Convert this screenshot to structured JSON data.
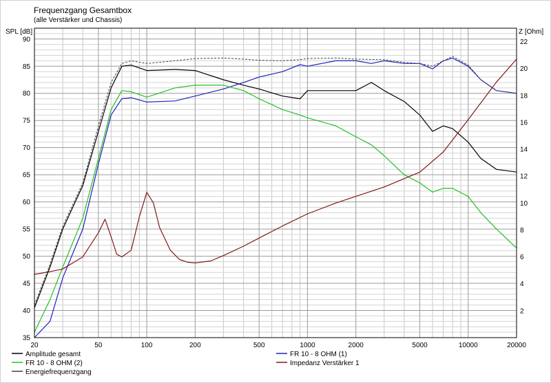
{
  "chart_data": {
    "type": "line",
    "title": "Frequenzgang Gesamtbox",
    "subtitle": "(alle Verstärker und Chassis)",
    "ylabel_left": "SPL [dB]",
    "ylabel_right": "Z [Ohm]",
    "x_scale": "log",
    "xlim": [
      20,
      20000
    ],
    "ylim_left": [
      35,
      92
    ],
    "ylim_right": [
      0,
      23
    ],
    "grid": true,
    "x_ticks": [
      "20",
      "50",
      "100",
      "200",
      "500",
      "1000",
      "2000",
      "5000",
      "10000",
      "20000"
    ],
    "y_ticks_left": [
      "35",
      "40",
      "45",
      "50",
      "55",
      "60",
      "65",
      "70",
      "75",
      "80",
      "85",
      "90"
    ],
    "y_ticks_right": [
      "2",
      "4",
      "6",
      "8",
      "10",
      "12",
      "14",
      "16",
      "18",
      "20",
      "22"
    ],
    "legend": [
      {
        "label": "Amplitude gesamt",
        "color": "#000000"
      },
      {
        "label": "FR 10 - 8 OHM (1)",
        "color": "#2020c0"
      },
      {
        "label": "FR 10 - 8 OHM (2)",
        "color": "#22c022"
      },
      {
        "label": "Impedanz Verstärker 1",
        "color": "#801818"
      },
      {
        "label": "Energiefrequenzgang",
        "color": "#404040"
      }
    ],
    "series": [
      {
        "name": "Amplitude gesamt",
        "axis": "left",
        "color": "#000000",
        "x": [
          20,
          25,
          30,
          40,
          50,
          60,
          70,
          80,
          100,
          150,
          200,
          300,
          400,
          500,
          700,
          900,
          1000,
          1500,
          2000,
          2500,
          3000,
          4000,
          5000,
          6000,
          7000,
          8000,
          10000,
          12000,
          15000,
          20000
        ],
        "y": [
          40.5,
          48,
          55,
          63,
          73,
          81,
          85,
          85.2,
          84.2,
          84.4,
          84.2,
          82.5,
          81.5,
          80.8,
          79.5,
          79,
          80.5,
          80.5,
          80.5,
          82,
          80.5,
          78.5,
          76,
          73,
          74,
          73.5,
          71,
          68,
          66,
          65.5
        ]
      },
      {
        "name": "FR 10 - 8 OHM (1)",
        "axis": "left",
        "color": "#2020c0",
        "x": [
          20,
          25,
          30,
          40,
          50,
          60,
          70,
          80,
          100,
          150,
          200,
          300,
          400,
          500,
          700,
          900,
          1000,
          1500,
          2000,
          2500,
          3000,
          4000,
          5000,
          6000,
          7000,
          8000,
          10000,
          12000,
          15000,
          20000
        ],
        "y": [
          35,
          38,
          46,
          55,
          67,
          76,
          79,
          79.2,
          78.4,
          78.6,
          79.5,
          80.8,
          82,
          83,
          84,
          85.3,
          85,
          86,
          86,
          85.5,
          86,
          85.5,
          85.5,
          84.5,
          86,
          86.5,
          85,
          82.5,
          80.5,
          80
        ]
      },
      {
        "name": "FR 10 - 8 OHM (2)",
        "axis": "left",
        "color": "#22c022",
        "x": [
          20,
          25,
          30,
          40,
          50,
          60,
          70,
          80,
          100,
          150,
          200,
          300,
          400,
          500,
          700,
          900,
          1000,
          1500,
          2000,
          2500,
          3000,
          4000,
          5000,
          6000,
          7000,
          8000,
          10000,
          12000,
          15000,
          20000
        ],
        "y": [
          36,
          42,
          48,
          57,
          68,
          77,
          80.5,
          80.3,
          79.3,
          81,
          81.5,
          81.5,
          80.5,
          79,
          77,
          76,
          75.5,
          74,
          72,
          70.5,
          68.5,
          65,
          63.5,
          61.8,
          62.5,
          62.5,
          61,
          58,
          55,
          51.5
        ]
      },
      {
        "name": "Impedanz Verstärker 1",
        "axis": "right",
        "color": "#801818",
        "x": [
          20,
          25,
          30,
          40,
          50,
          55,
          60,
          65,
          70,
          80,
          90,
          100,
          110,
          120,
          140,
          160,
          180,
          200,
          250,
          300,
          400,
          500,
          700,
          1000,
          1500,
          2000,
          3000,
          5000,
          7000,
          10000,
          15000,
          20000
        ],
        "y": [
          4.7,
          4.9,
          5.1,
          6,
          7.8,
          8.8,
          7.5,
          6.2,
          6,
          6.5,
          9,
          10.8,
          10,
          8.2,
          6.5,
          5.8,
          5.6,
          5.55,
          5.7,
          6.1,
          6.8,
          7.4,
          8.3,
          9.2,
          10,
          10.5,
          11.2,
          12.3,
          13.8,
          16.2,
          19,
          20.7
        ]
      },
      {
        "name": "Energiefrequenzgang",
        "axis": "left",
        "color": "#404040",
        "x": [
          20,
          25,
          30,
          40,
          50,
          60,
          70,
          80,
          100,
          150,
          200,
          300,
          400,
          500,
          700,
          900,
          1000,
          1500,
          2000,
          3000,
          4000,
          5000,
          6000,
          8000,
          10000,
          12000,
          15000,
          20000
        ],
        "y": [
          41,
          48.5,
          55.5,
          63.5,
          74,
          82,
          85.5,
          86,
          85.5,
          86,
          86.4,
          86.5,
          86.3,
          86.1,
          86,
          86.2,
          86.4,
          86.5,
          86.3,
          86.2,
          85.7,
          85.5,
          85,
          86.8,
          85.2,
          82.5,
          80.5,
          80
        ]
      }
    ]
  }
}
